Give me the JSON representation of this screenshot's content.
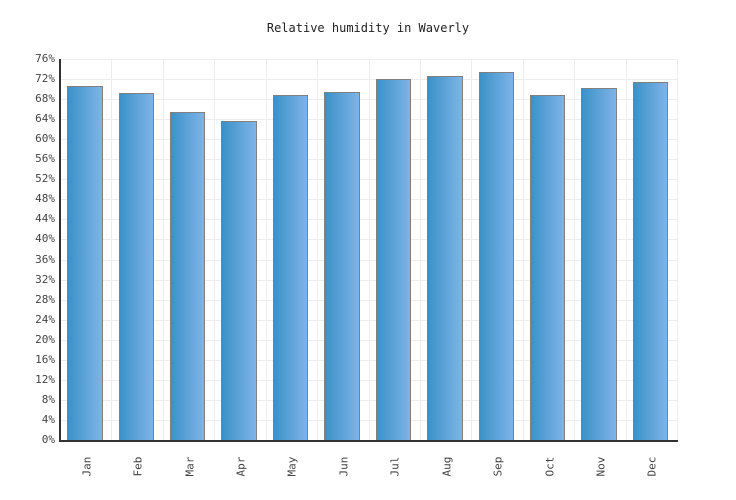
{
  "title": "Relative humidity in Waverly",
  "chart_data": {
    "type": "bar",
    "title": "Relative humidity in Waverly",
    "categories": [
      "Jan",
      "Feb",
      "Mar",
      "Apr",
      "May",
      "Jun",
      "Jul",
      "Aug",
      "Sep",
      "Oct",
      "Nov",
      "Dec"
    ],
    "values": [
      70.6,
      69.2,
      65.4,
      63.6,
      68.8,
      69.4,
      72.0,
      72.6,
      73.4,
      68.8,
      70.2,
      71.4
    ],
    "unit": "%",
    "xlabel": "",
    "ylabel": "",
    "ylim": [
      0,
      76
    ],
    "ytick_step": 4,
    "ytick_labels": [
      "0%",
      "4%",
      "8%",
      "12%",
      "16%",
      "20%",
      "24%",
      "28%",
      "32%",
      "36%",
      "40%",
      "44%",
      "48%",
      "52%",
      "56%",
      "60%",
      "64%",
      "68%",
      "72%",
      "76%"
    ],
    "grid": true,
    "legend_position": "none",
    "colors": {
      "bar_gradient_left": "#3a92c8",
      "bar_gradient_right": "#7fb3e8",
      "bar_border": "#808080",
      "gridline": "#ededed",
      "axis": "#333333",
      "label_text": "#444444",
      "title_text": "#222222",
      "background": "#ffffff"
    }
  }
}
